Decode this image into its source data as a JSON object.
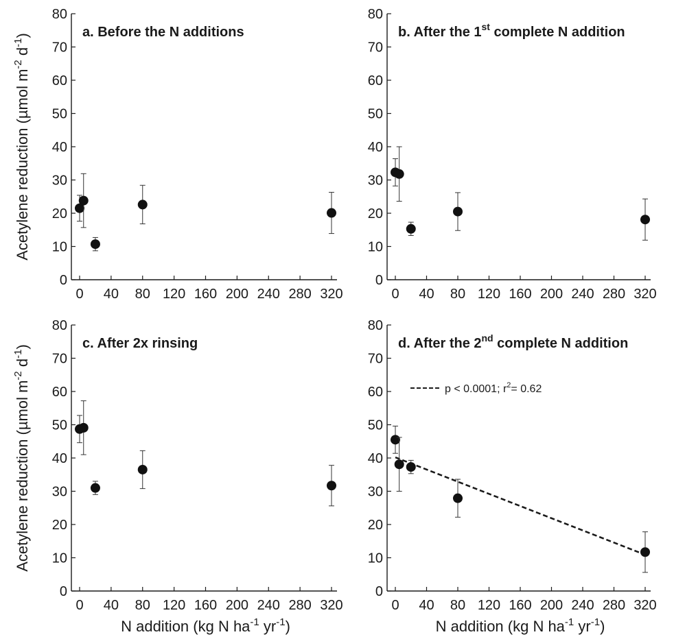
{
  "figure": {
    "ylabel": "Acetylene reduction (µmol m",
    "ylabel_sup1": "-2",
    "ylabel_mid": " d",
    "ylabel_sup2": "-1",
    "ylabel_end": ")",
    "xlabel": "N addition (kg N ha",
    "xlabel_sup1": "-1",
    "xlabel_mid": " yr",
    "xlabel_sup2": "-1",
    "xlabel_end": ")"
  },
  "chart_data": [
    {
      "type": "scatter",
      "title": "a. Before the N additions",
      "title_sup": "",
      "title_end": "",
      "xlim": [
        0,
        320
      ],
      "ylim": [
        0,
        80
      ],
      "xticks": [
        0,
        40,
        80,
        120,
        160,
        200,
        240,
        280,
        320
      ],
      "yticks": [
        0,
        10,
        20,
        30,
        40,
        50,
        60,
        70,
        80
      ],
      "x": [
        0,
        5,
        20,
        80,
        320
      ],
      "y": [
        21.5,
        23.8,
        10.7,
        22.6,
        20.1
      ],
      "err": [
        3.9,
        8.1,
        2.0,
        5.8,
        6.2
      ]
    },
    {
      "type": "scatter",
      "title": "b. After the 1",
      "title_sup": "st",
      "title_end": " complete N addition",
      "xlim": [
        0,
        320
      ],
      "ylim": [
        0,
        80
      ],
      "xticks": [
        0,
        40,
        80,
        120,
        160,
        200,
        240,
        280,
        320
      ],
      "yticks": [
        0,
        10,
        20,
        30,
        40,
        50,
        60,
        70,
        80
      ],
      "x": [
        0,
        5,
        20,
        80,
        320
      ],
      "y": [
        32.3,
        31.8,
        15.3,
        20.5,
        18.1
      ],
      "err": [
        4.1,
        8.2,
        2.0,
        5.7,
        6.2
      ]
    },
    {
      "type": "scatter",
      "title": "c. After 2x rinsing",
      "title_sup": "",
      "title_end": "",
      "xlim": [
        0,
        320
      ],
      "ylim": [
        0,
        80
      ],
      "xticks": [
        0,
        40,
        80,
        120,
        160,
        200,
        240,
        280,
        320
      ],
      "yticks": [
        0,
        10,
        20,
        30,
        40,
        50,
        60,
        70,
        80
      ],
      "x": [
        0,
        5,
        20,
        80,
        320
      ],
      "y": [
        48.7,
        49.1,
        31.0,
        36.5,
        31.7
      ],
      "err": [
        4.1,
        8.1,
        2.0,
        5.7,
        6.1
      ]
    },
    {
      "type": "scatter",
      "title": "d. After the 2",
      "title_sup": "nd",
      "title_end": " complete N addition",
      "xlim": [
        0,
        320
      ],
      "ylim": [
        0,
        80
      ],
      "xticks": [
        0,
        40,
        80,
        120,
        160,
        200,
        240,
        280,
        320
      ],
      "yticks": [
        0,
        10,
        20,
        30,
        40,
        50,
        60,
        70,
        80
      ],
      "x": [
        0,
        5,
        20,
        80,
        320
      ],
      "y": [
        45.5,
        38.1,
        37.3,
        27.9,
        11.7
      ],
      "err": [
        4.1,
        8.1,
        2.0,
        5.7,
        6.1
      ],
      "trendline": {
        "x": [
          0,
          320
        ],
        "y": [
          40.2,
          10.9
        ]
      },
      "legend": {
        "text": "p < 0.0001; r",
        "sup": "2",
        "end": "= 0.62"
      }
    }
  ]
}
